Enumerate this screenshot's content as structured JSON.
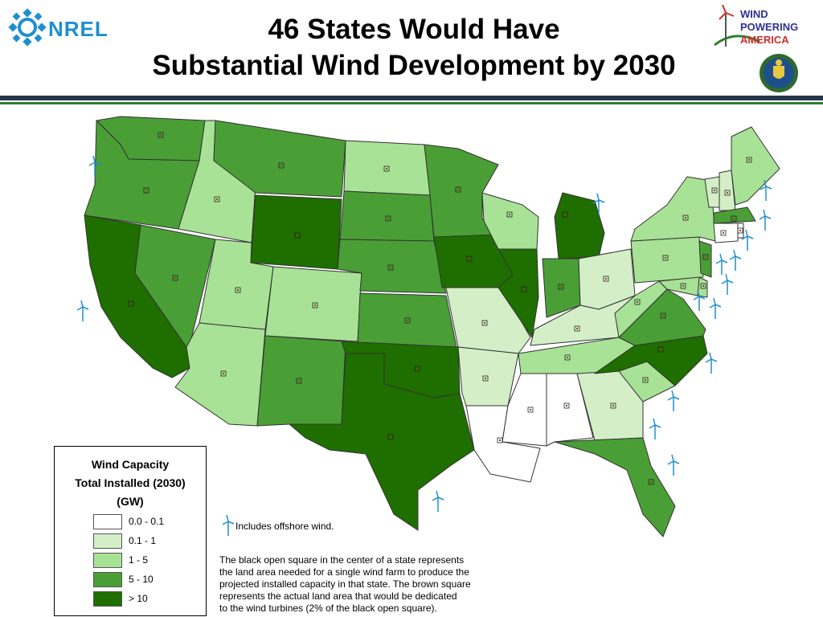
{
  "header": {
    "title_line1": "46 States Would Have",
    "title_line2": "Substantial Wind Development by 2030",
    "nrel_logo_text": "NREL",
    "wpa_logo_lines": [
      "WIND",
      "POWERING",
      "AMERICA"
    ]
  },
  "legend": {
    "title_lines": [
      "Wind Capacity",
      "Total Installed (2030)",
      "(GW)"
    ],
    "items": [
      {
        "label": "0.0 - 0.1",
        "color": "#ffffff"
      },
      {
        "label": "0.1 - 1",
        "color": "#d4efc8"
      },
      {
        "label": "1 - 5",
        "color": "#a8e296"
      },
      {
        "label": "5 - 10",
        "color": "#4a9e36"
      },
      {
        "label": "> 10",
        "color": "#1f6e00"
      }
    ]
  },
  "notes": {
    "offshore": "Includes offshore wind.",
    "explanation_lines": [
      "The black open square in the center of a state represents",
      "the land area needed for a single wind farm to produce the",
      "projected installed capacity in that state. The brown square",
      "represents the actual land area that would be dedicated",
      "to the wind turbines (2% of the black open square)."
    ]
  },
  "colors": {
    "white": "#ffffff",
    "light": "#d4efc8",
    "mid_light": "#a8e296",
    "mid": "#4a9e36",
    "dark": "#1f6e00",
    "turbine": "#1e8fd0",
    "rule_dark": "#26374a",
    "rule_green": "#2f7d2f"
  },
  "map": {
    "states": [
      {
        "name": "WA",
        "cls": "mid"
      },
      {
        "name": "OR",
        "cls": "mid"
      },
      {
        "name": "CA",
        "cls": "dark"
      },
      {
        "name": "ID",
        "cls": "mid_light"
      },
      {
        "name": "NV",
        "cls": "mid"
      },
      {
        "name": "MT",
        "cls": "mid"
      },
      {
        "name": "WY",
        "cls": "dark"
      },
      {
        "name": "UT",
        "cls": "mid_light"
      },
      {
        "name": "AZ",
        "cls": "mid_light"
      },
      {
        "name": "CO",
        "cls": "mid_light"
      },
      {
        "name": "NM",
        "cls": "mid"
      },
      {
        "name": "ND",
        "cls": "mid_light"
      },
      {
        "name": "SD",
        "cls": "mid"
      },
      {
        "name": "NE",
        "cls": "mid"
      },
      {
        "name": "KS",
        "cls": "mid"
      },
      {
        "name": "OK",
        "cls": "dark"
      },
      {
        "name": "TX",
        "cls": "dark"
      },
      {
        "name": "MN",
        "cls": "mid"
      },
      {
        "name": "IA",
        "cls": "dark"
      },
      {
        "name": "MO",
        "cls": "light"
      },
      {
        "name": "AR",
        "cls": "light"
      },
      {
        "name": "LA",
        "cls": "white"
      },
      {
        "name": "WI",
        "cls": "mid_light"
      },
      {
        "name": "IL",
        "cls": "dark"
      },
      {
        "name": "MI",
        "cls": "dark"
      },
      {
        "name": "IN",
        "cls": "mid"
      },
      {
        "name": "OH",
        "cls": "light"
      },
      {
        "name": "KY",
        "cls": "light"
      },
      {
        "name": "TN",
        "cls": "mid_light"
      },
      {
        "name": "MS",
        "cls": "white"
      },
      {
        "name": "AL",
        "cls": "white"
      },
      {
        "name": "GA",
        "cls": "light"
      },
      {
        "name": "FL",
        "cls": "mid"
      },
      {
        "name": "SC",
        "cls": "mid_light"
      },
      {
        "name": "NC",
        "cls": "dark"
      },
      {
        "name": "VA",
        "cls": "mid"
      },
      {
        "name": "WV",
        "cls": "mid_light"
      },
      {
        "name": "PA",
        "cls": "mid_light"
      },
      {
        "name": "NY",
        "cls": "mid_light"
      },
      {
        "name": "VT",
        "cls": "light"
      },
      {
        "name": "NH",
        "cls": "light"
      },
      {
        "name": "ME",
        "cls": "mid_light"
      },
      {
        "name": "MA",
        "cls": "mid"
      },
      {
        "name": "CT",
        "cls": "white"
      },
      {
        "name": "RI",
        "cls": "white"
      },
      {
        "name": "NJ",
        "cls": "mid"
      },
      {
        "name": "DE",
        "cls": "mid_light"
      },
      {
        "name": "MD",
        "cls": "mid_light"
      }
    ]
  }
}
